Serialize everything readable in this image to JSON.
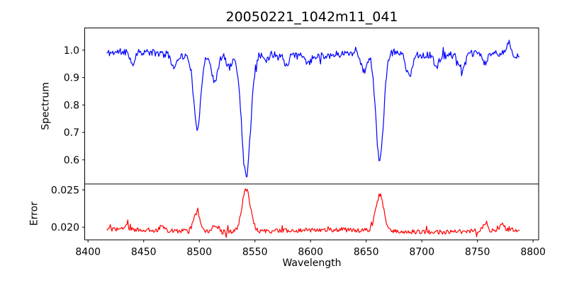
{
  "chart_data": {
    "type": "line",
    "title": "20050221_1042m11_041",
    "xlabel": "Wavelength",
    "grid": false,
    "legend": false,
    "background_color": "#ffffff",
    "axis_color": "#000000",
    "xlim": [
      8397,
      8805
    ],
    "x_start": 8417,
    "x_end": 8788,
    "x_step": 0.75,
    "x_tick_values": [
      8400,
      8450,
      8500,
      8550,
      8600,
      8650,
      8700,
      8750,
      8800
    ],
    "x_tick_labels": [
      "8400",
      "8450",
      "8500",
      "8550",
      "8600",
      "8650",
      "8700",
      "8750",
      "8800"
    ],
    "noise_seed": 11,
    "panels": [
      {
        "ylabel": "Spectrum",
        "color": "#0000ff",
        "ylim": [
          0.512,
          1.081
        ],
        "y_tick_values": [
          1.0,
          0.9,
          0.8,
          0.7,
          0.6
        ],
        "y_tick_labels": [
          "1.0",
          "0.9",
          "0.8",
          "0.7",
          "0.6"
        ],
        "base": 0.985,
        "noise_amplitude": 0.013,
        "spike_probability": 0.07,
        "spike_amplitude": 0.022,
        "lowfreq": [
          {
            "amp": 0.007,
            "period": 17,
            "phase": 0.0
          },
          {
            "amp": 0.005,
            "period": 43,
            "phase": 2.0
          }
        ],
        "features": [
          {
            "center": 8440.0,
            "amplitude": -0.05,
            "width": 1.8
          },
          {
            "center": 8477.0,
            "amplitude": -0.045,
            "width": 1.8
          },
          {
            "center": 8498.0,
            "amplitude": -0.265,
            "width": 3.0
          },
          {
            "center": 8514.0,
            "amplitude": -0.095,
            "width": 2.5
          },
          {
            "center": 8527.0,
            "amplitude": -0.045,
            "width": 2.2
          },
          {
            "center": 8542.1,
            "amplitude": -0.445,
            "width": 4.0
          },
          {
            "center": 8560.0,
            "amplitude": -0.03,
            "width": 2.0
          },
          {
            "center": 8578.0,
            "amplitude": -0.035,
            "width": 2.2
          },
          {
            "center": 8598.0,
            "amplitude": -0.03,
            "width": 2.0
          },
          {
            "center": 8648.0,
            "amplitude": -0.075,
            "width": 2.5
          },
          {
            "center": 8662.1,
            "amplitude": -0.395,
            "width": 3.6
          },
          {
            "center": 8688.5,
            "amplitude": -0.085,
            "width": 2.6
          },
          {
            "center": 8713.0,
            "amplitude": -0.04,
            "width": 2.2
          },
          {
            "center": 8736.0,
            "amplitude": -0.07,
            "width": 2.5
          },
          {
            "center": 8757.0,
            "amplitude": -0.04,
            "width": 2.0
          },
          {
            "center": 8778.0,
            "amplitude": 0.05,
            "width": 1.5
          }
        ]
      },
      {
        "ylabel": "Error",
        "color": "#ff0000",
        "ylim": [
          0.0183,
          0.0258
        ],
        "y_tick_values": [
          0.025,
          0.02
        ],
        "y_tick_labels": [
          "0.025",
          "0.020"
        ],
        "base": 0.0195,
        "noise_amplitude": 0.0003,
        "spike_probability": 0.06,
        "spike_amplitude": 0.0007,
        "lowfreq": [
          {
            "amp": 0.00015,
            "period": 29,
            "phase": 1.0
          }
        ],
        "features": [
          {
            "center": 8435.0,
            "amplitude": 0.0007,
            "width": 2.2
          },
          {
            "center": 8466.0,
            "amplitude": 0.0006,
            "width": 2.0
          },
          {
            "center": 8498.0,
            "amplitude": 0.0026,
            "width": 3.0
          },
          {
            "center": 8514.0,
            "amplitude": 0.0009,
            "width": 2.4
          },
          {
            "center": 8542.1,
            "amplitude": 0.0057,
            "width": 3.8
          },
          {
            "center": 8662.1,
            "amplitude": 0.0049,
            "width": 3.6
          },
          {
            "center": 8757.0,
            "amplitude": 0.0012,
            "width": 2.0
          },
          {
            "center": 8772.0,
            "amplitude": 0.0008,
            "width": 2.0
          }
        ]
      }
    ]
  }
}
